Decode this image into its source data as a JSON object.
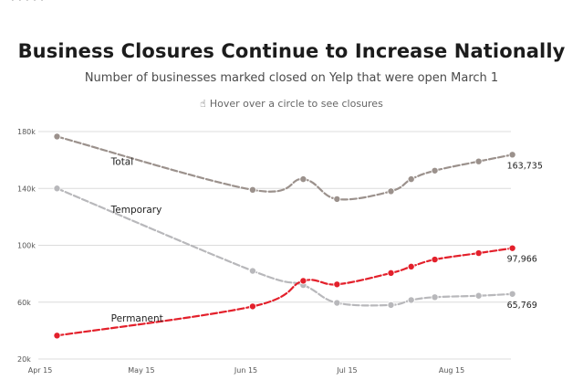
{
  "page": {
    "cut_text": "· · ·  ·  ·"
  },
  "chart_data": {
    "type": "line",
    "title": "Business Closures Continue to Increase Nationally",
    "subtitle": "Number of businesses marked closed on Yelp that were open March 1",
    "hint": "Hover over a circle to see closures",
    "hint_icon": "hand-pointer-icon",
    "x_ticks": [
      {
        "label": "Apr 15",
        "day": 0
      },
      {
        "label": "May 15",
        "day": 30
      },
      {
        "label": "Jun 15",
        "day": 61
      },
      {
        "label": "Jul 15",
        "day": 91
      },
      {
        "label": "Aug 15",
        "day": 122
      }
    ],
    "y_ticks": [
      {
        "label": "20k",
        "value": 20000
      },
      {
        "label": "60k",
        "value": 60000
      },
      {
        "label": "100k",
        "value": 100000
      },
      {
        "label": "140k",
        "value": 140000
      },
      {
        "label": "180k",
        "value": 180000
      }
    ],
    "ylim": [
      20000,
      180000
    ],
    "xlim": [
      0,
      142
    ],
    "series": [
      {
        "name": "Total",
        "color": "#9b918c",
        "label_day": 21,
        "label_value": 159000,
        "end_label": "163,735",
        "points": [
          {
            "day": 5,
            "value": 176500
          },
          {
            "day": 63,
            "value": 139000
          },
          {
            "day": 78,
            "value": 146500
          },
          {
            "day": 88,
            "value": 132500
          },
          {
            "day": 104,
            "value": 138000
          },
          {
            "day": 110,
            "value": 146500
          },
          {
            "day": 117,
            "value": 152500
          },
          {
            "day": 130,
            "value": 159000
          },
          {
            "day": 140,
            "value": 163735
          }
        ]
      },
      {
        "name": "Temporary",
        "color": "#b8b8bb",
        "label_day": 21,
        "label_value": 125500,
        "end_label": "65,769",
        "points": [
          {
            "day": 5,
            "value": 140000
          },
          {
            "day": 63,
            "value": 82000
          },
          {
            "day": 78,
            "value": 72000
          },
          {
            "day": 88,
            "value": 59500
          },
          {
            "day": 104,
            "value": 58000
          },
          {
            "day": 110,
            "value": 61500
          },
          {
            "day": 117,
            "value": 63500
          },
          {
            "day": 130,
            "value": 64500
          },
          {
            "day": 140,
            "value": 65769
          }
        ]
      },
      {
        "name": "Permanent",
        "color": "#e3202b",
        "label_day": 21,
        "label_value": 49000,
        "end_label": "97,966",
        "points": [
          {
            "day": 5,
            "value": 36500
          },
          {
            "day": 63,
            "value": 57000
          },
          {
            "day": 78,
            "value": 75000
          },
          {
            "day": 88,
            "value": 72500
          },
          {
            "day": 104,
            "value": 80500
          },
          {
            "day": 110,
            "value": 85000
          },
          {
            "day": 117,
            "value": 90000
          },
          {
            "day": 130,
            "value": 94500
          },
          {
            "day": 140,
            "value": 97966
          }
        ]
      }
    ]
  }
}
